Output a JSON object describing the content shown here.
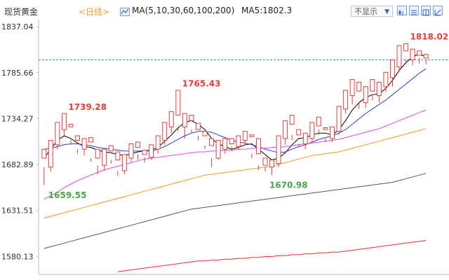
{
  "header": {
    "title": "现货黄金",
    "period": "<日线>",
    "ma_label": "MA(5,10,30,60,100,200)",
    "ma5_label": "MA5:1802.3",
    "hide_button": "不显示",
    "hide_icon": "caret-down-icon",
    "tool_icons": [
      "chart-tool-1-icon",
      "chart-tool-2-icon",
      "chart-tool-3-icon",
      "chart-tool-4-icon"
    ]
  },
  "chart_data": {
    "type": "candlestick",
    "y_ticks": [
      "1837.04",
      "1785.66",
      "1734.27",
      "1682.89",
      "1631.51",
      "1580.13"
    ],
    "ylim": [
      1560,
      1845
    ],
    "reference_line": 1800.0,
    "colors": {
      "up": "#e0403a",
      "down": "#4aa548",
      "ma5": "#000000",
      "ma10": "#2a3fd6",
      "ma30": "#e24ae3",
      "ma60": "#f29b1d",
      "ma100": "#555555",
      "ma200": "#e03030",
      "ref": "#3f8fd8",
      "axis": "#bbbbbb"
    },
    "candles": [
      [
        1690,
        1700,
        1660,
        1680
      ],
      [
        1680,
        1710,
        1675,
        1705
      ],
      [
        1705,
        1730,
        1700,
        1722
      ],
      [
        1722,
        1740,
        1715,
        1725
      ],
      [
        1725,
        1728,
        1705,
        1710
      ],
      [
        1710,
        1715,
        1695,
        1700
      ],
      [
        1700,
        1712,
        1693,
        1708
      ],
      [
        1708,
        1713,
        1686,
        1690
      ],
      [
        1690,
        1700,
        1672,
        1682
      ],
      [
        1682,
        1700,
        1676,
        1698
      ],
      [
        1698,
        1704,
        1684,
        1688
      ],
      [
        1688,
        1697,
        1670,
        1676
      ],
      [
        1676,
        1694,
        1672,
        1690
      ],
      [
        1690,
        1706,
        1686,
        1702
      ],
      [
        1702,
        1708,
        1688,
        1694
      ],
      [
        1694,
        1699,
        1685,
        1691
      ],
      [
        1691,
        1705,
        1688,
        1700
      ],
      [
        1700,
        1715,
        1695,
        1710
      ],
      [
        1710,
        1730,
        1705,
        1725
      ],
      [
        1725,
        1742,
        1718,
        1738
      ],
      [
        1738,
        1766,
        1720,
        1725
      ],
      [
        1725,
        1740,
        1712,
        1732
      ],
      [
        1732,
        1738,
        1718,
        1722
      ],
      [
        1722,
        1729,
        1710,
        1715
      ],
      [
        1715,
        1720,
        1700,
        1704
      ],
      [
        1704,
        1712,
        1680,
        1690
      ],
      [
        1690,
        1710,
        1688,
        1700
      ],
      [
        1700,
        1712,
        1695,
        1706
      ],
      [
        1706,
        1712,
        1698,
        1703
      ],
      [
        1703,
        1715,
        1699,
        1710
      ],
      [
        1710,
        1720,
        1705,
        1714
      ],
      [
        1714,
        1716,
        1690,
        1695
      ],
      [
        1695,
        1712,
        1677,
        1682
      ],
      [
        1682,
        1690,
        1675,
        1680
      ],
      [
        1680,
        1688,
        1671,
        1684
      ],
      [
        1684,
        1715,
        1680,
        1712
      ],
      [
        1712,
        1732,
        1705,
        1728
      ],
      [
        1728,
        1738,
        1710,
        1716
      ],
      [
        1716,
        1722,
        1702,
        1706
      ],
      [
        1706,
        1718,
        1700,
        1712
      ],
      [
        1712,
        1730,
        1708,
        1726
      ],
      [
        1726,
        1736,
        1716,
        1722
      ],
      [
        1722,
        1724,
        1708,
        1712
      ],
      [
        1712,
        1725,
        1708,
        1720
      ],
      [
        1720,
        1748,
        1716,
        1745
      ],
      [
        1745,
        1766,
        1740,
        1760
      ],
      [
        1760,
        1778,
        1750,
        1765
      ],
      [
        1765,
        1775,
        1745,
        1752
      ],
      [
        1752,
        1770,
        1746,
        1765
      ],
      [
        1765,
        1778,
        1755,
        1760
      ],
      [
        1760,
        1775,
        1752,
        1770
      ],
      [
        1770,
        1786,
        1764,
        1780
      ],
      [
        1780,
        1800,
        1770,
        1792
      ],
      [
        1792,
        1816,
        1788,
        1810
      ],
      [
        1810,
        1818,
        1795,
        1800
      ],
      [
        1800,
        1812,
        1794,
        1805
      ],
      [
        1805,
        1810,
        1796,
        1802
      ],
      [
        1802,
        1806,
        1795,
        1800
      ]
    ],
    "ma": [
      {
        "key": "ma5",
        "values": [
          1690,
          1700,
          1710,
          1715,
          1712,
          1707,
          1703,
          1702,
          1699,
          1697,
          1696,
          1694,
          1693,
          1695,
          1697,
          1698,
          1699,
          1702,
          1709,
          1716,
          1724,
          1730,
          1732,
          1728,
          1722,
          1712,
          1706,
          1703,
          1700,
          1702,
          1705,
          1706,
          1700,
          1694,
          1688,
          1690,
          1696,
          1705,
          1712,
          1713,
          1716,
          1718,
          1718,
          1716,
          1722,
          1732,
          1744,
          1752,
          1758,
          1761,
          1762,
          1768,
          1777,
          1788,
          1797,
          1803,
          1807,
          1803
        ]
      },
      {
        "key": "ma10",
        "values": [
          1700,
          1701,
          1703,
          1705,
          1706,
          1706,
          1705,
          1704,
          1702,
          1701,
          1700,
          1699,
          1698,
          1698,
          1698,
          1698,
          1698,
          1700,
          1703,
          1707,
          1711,
          1715,
          1718,
          1720,
          1720,
          1719,
          1716,
          1713,
          1710,
          1708,
          1707,
          1705,
          1703,
          1700,
          1698,
          1696,
          1697,
          1700,
          1703,
          1705,
          1708,
          1711,
          1713,
          1715,
          1718,
          1722,
          1728,
          1734,
          1740,
          1745,
          1750,
          1755,
          1761,
          1767,
          1773,
          1779,
          1785,
          1790
        ]
      },
      {
        "key": "ma30",
        "values": [
          1644,
          1648,
          1652,
          1657,
          1661,
          1665,
          1668,
          1671,
          1674,
          1677,
          1679,
          1681,
          1683,
          1685,
          1687,
          1689,
          1690,
          1691,
          1692,
          1693,
          1694,
          1695,
          1696,
          1697,
          1697,
          1698,
          1698,
          1699,
          1699,
          1700,
          1700,
          1701,
          1701,
          1701,
          1702,
          1702,
          1703,
          1704,
          1705,
          1706,
          1707,
          1708,
          1709,
          1710,
          1711,
          1713,
          1715,
          1717,
          1719,
          1721,
          1723,
          1726,
          1729,
          1732,
          1735,
          1738,
          1741,
          1744
        ]
      },
      {
        "key": "ma60",
        "values": [
          1623,
          1625,
          1627,
          1629,
          1631,
          1633,
          1635,
          1637,
          1639,
          1641,
          1643,
          1645,
          1647,
          1649,
          1651,
          1653,
          1655,
          1657,
          1659,
          1661,
          1663,
          1665,
          1667,
          1669,
          1671,
          1672,
          1673,
          1674,
          1675,
          1676,
          1677,
          1678,
          1679,
          1680,
          1681,
          1683,
          1685,
          1687,
          1689,
          1691,
          1693,
          1694,
          1695,
          1696,
          1697,
          1699,
          1701,
          1703,
          1705,
          1707,
          1709,
          1711,
          1713,
          1715,
          1717,
          1719,
          1721,
          1723
        ]
      },
      {
        "key": "ma100",
        "values": [
          1589,
          1591,
          1593,
          1595,
          1597,
          1599,
          1601,
          1603,
          1605,
          1607,
          1609,
          1611,
          1613,
          1615,
          1617,
          1619,
          1621,
          1623,
          1625,
          1627,
          1629,
          1631,
          1633,
          1634,
          1635,
          1636,
          1637,
          1638,
          1639,
          1640,
          1641,
          1642,
          1643,
          1644,
          1645,
          1646,
          1647,
          1648,
          1649,
          1650,
          1651,
          1652,
          1653,
          1654,
          1655,
          1656,
          1657,
          1658,
          1659,
          1660,
          1661,
          1662,
          1663,
          1665,
          1667,
          1669,
          1671,
          1673
        ]
      },
      {
        "key": "ma200",
        "values": [
          null,
          null,
          null,
          null,
          null,
          null,
          null,
          null,
          null,
          null,
          null,
          1563,
          1564,
          1565,
          1566,
          1567,
          1568,
          1569,
          1570,
          1571,
          1572,
          1573,
          1574,
          1575,
          1575,
          1576,
          1576,
          1577,
          1577,
          1578,
          1578,
          1579,
          1579,
          1580,
          1580,
          1581,
          1581,
          1582,
          1582,
          1583,
          1583,
          1584,
          1584,
          1585,
          1585,
          1586,
          1587,
          1588,
          1589,
          1590,
          1591,
          1592,
          1593,
          1594,
          1595,
          1596,
          1597,
          1598
        ]
      }
    ],
    "annotations": [
      {
        "text": "1739.28",
        "index": 3,
        "value": 1739.28,
        "kind": "high"
      },
      {
        "text": "1765.43",
        "index": 20,
        "value": 1765.43,
        "kind": "high"
      },
      {
        "text": "1818.02",
        "index": 54,
        "value": 1818.02,
        "kind": "high"
      },
      {
        "text": "1659.55",
        "index": 0,
        "value": 1659.55,
        "kind": "low"
      },
      {
        "text": "1670.98",
        "index": 33,
        "value": 1670.98,
        "kind": "low"
      }
    ]
  }
}
